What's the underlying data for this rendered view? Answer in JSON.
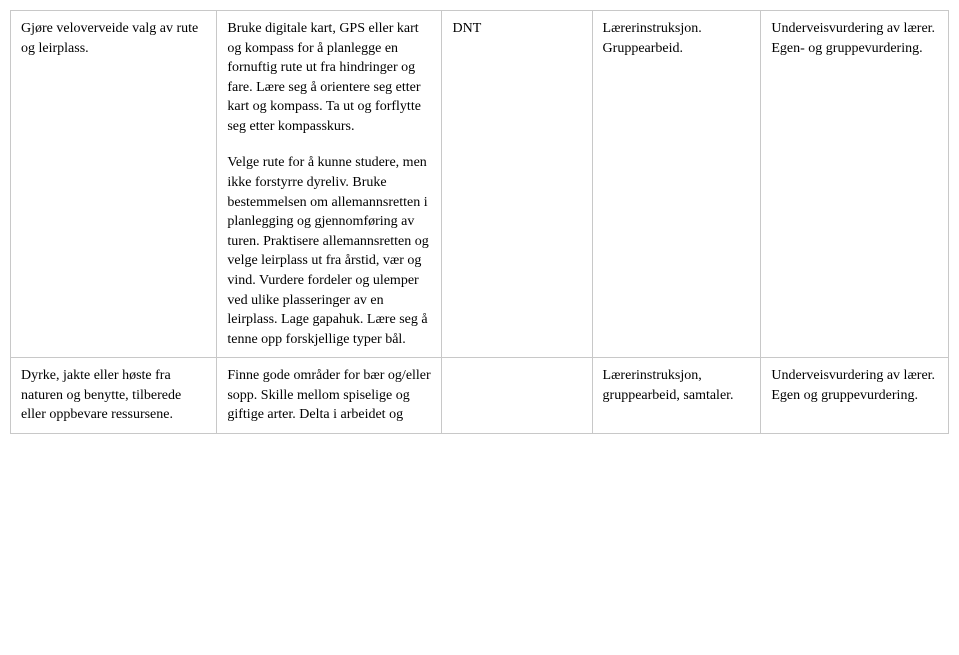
{
  "table": {
    "rows": [
      {
        "col1": "Gjøre veloverveide valg av rute og leirplass.",
        "col2_para1": "Bruke digitale kart, GPS eller kart og kompass for å planlegge en fornuftig rute ut fra hindringer og fare. Lære seg å orientere seg etter kart og kompass. Ta ut og forflytte seg etter kompasskurs.",
        "col2_para2": "Velge rute for å kunne studere, men ikke forstyrre dyreliv. Bruke bestemmelsen om allemannsretten i planlegging og gjennomføring av turen. Praktisere allemannsretten og velge leirplass ut fra årstid, vær og vind. Vurdere fordeler og ulemper ved ulike plasseringer av en leirplass. Lage gapahuk. Lære seg  å tenne opp forskjellige typer bål.",
        "col3": "DNT",
        "col4": "Lærerinstruksjon. Gruppearbeid.",
        "col5": "Underveisvurdering av lærer. Egen- og gruppevurdering."
      },
      {
        "col1": "Dyrke, jakte eller høste fra naturen og benytte, tilberede eller oppbevare ressursene.",
        "col2": "Finne gode områder for bær og/eller sopp. Skille mellom spiselige og giftige arter. Delta i arbeidet og",
        "col3": "",
        "col4": "Lærerinstruksjon, gruppearbeid, samtaler.",
        "col5": "Underveisvurdering av lærer. Egen og gruppevurdering."
      }
    ]
  }
}
